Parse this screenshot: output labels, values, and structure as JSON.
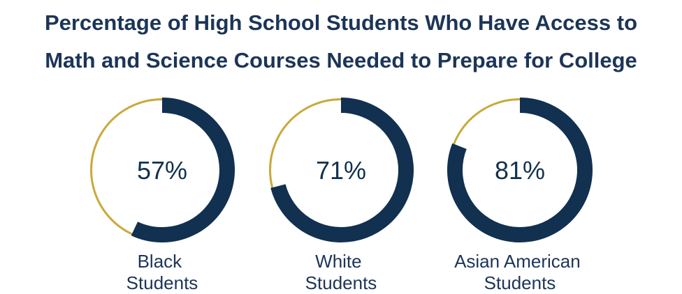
{
  "chart_data": {
    "type": "donut",
    "title": "Percentage of High School Students Who Have Access to Math and Science Courses Needed to Prepare for College",
    "categories": [
      "Black Students",
      "White Students",
      "Asian American Students"
    ],
    "values": [
      57,
      71,
      81
    ],
    "value_labels": [
      "57%",
      "71%",
      "81%"
    ],
    "color": "#12304f",
    "track_color": "#c9a93a"
  }
}
